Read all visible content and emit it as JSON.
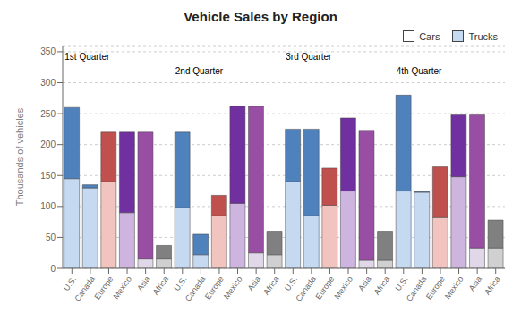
{
  "chart_data": {
    "type": "bar",
    "title": "Vehicle Sales by Region",
    "y_label": "Thousands of vehicles",
    "stacked": true,
    "grid": true,
    "legend": "upper right",
    "categories": [
      "U.S.",
      "Canada",
      "Europe",
      "Mexico",
      "Asia",
      "Africa",
      "U.S.",
      "Canada",
      "Europe",
      "Mexico",
      "Asia",
      "Africa",
      "U.S.",
      "Canada",
      "Europe",
      "Mexico",
      "Asia",
      "Africa",
      "U.S.",
      "Canada",
      "Europe",
      "Mexico",
      "Asia",
      "Africa"
    ],
    "series": [
      {
        "name": "Cars",
        "color": "#ffffff",
        "values": [
          145,
          130,
          140,
          90,
          15,
          15,
          98,
          22,
          85,
          105,
          25,
          22,
          140,
          85,
          102,
          125,
          13,
          13,
          125,
          123,
          82,
          148,
          33,
          33
        ],
        "colors": [
          "#c5d9f1",
          "#c5d9f1",
          "#f2c4c0",
          "#cdb5e0",
          "#e0d8e8",
          "#d0d0d0",
          "#c5d9f1",
          "#c5d9f1",
          "#f2c4c0",
          "#cdb5e0",
          "#e0d8e8",
          "#d0d0d0",
          "#c5d9f1",
          "#c5d9f1",
          "#f2c4c0",
          "#cdb5e0",
          "#e0d8e8",
          "#d0d0d0",
          "#c5d9f1",
          "#c5d9f1",
          "#f2c4c0",
          "#cdb5e0",
          "#e0d8e8",
          "#d0d0d0"
        ]
      },
      {
        "name": "Trucks",
        "color": "#c5d9f1",
        "values": [
          115,
          5,
          80,
          130,
          205,
          22,
          122,
          33,
          33,
          157,
          237,
          38,
          85,
          140,
          60,
          118,
          210,
          47,
          155,
          1,
          82,
          100,
          215,
          45
        ],
        "colors": [
          "#4f81bd",
          "#4f81bd",
          "#c0504d",
          "#7030a0",
          "#984ea3",
          "#808080",
          "#4f81bd",
          "#4f81bd",
          "#c0504d",
          "#7030a0",
          "#984ea3",
          "#808080",
          "#4f81bd",
          "#4f81bd",
          "#c0504d",
          "#7030a0",
          "#984ea3",
          "#808080",
          "#4f81bd",
          "#4f81bd",
          "#c0504d",
          "#7030a0",
          "#984ea3",
          "#808080"
        ]
      }
    ],
    "annotations": [
      "1st Quarter",
      "2nd Quarter",
      "3rd Quarter",
      "4th Quarter"
    ],
    "ylim": [
      0,
      360
    ],
    "yticks": [
      0,
      50,
      100,
      150,
      200,
      250,
      300,
      350
    ]
  }
}
